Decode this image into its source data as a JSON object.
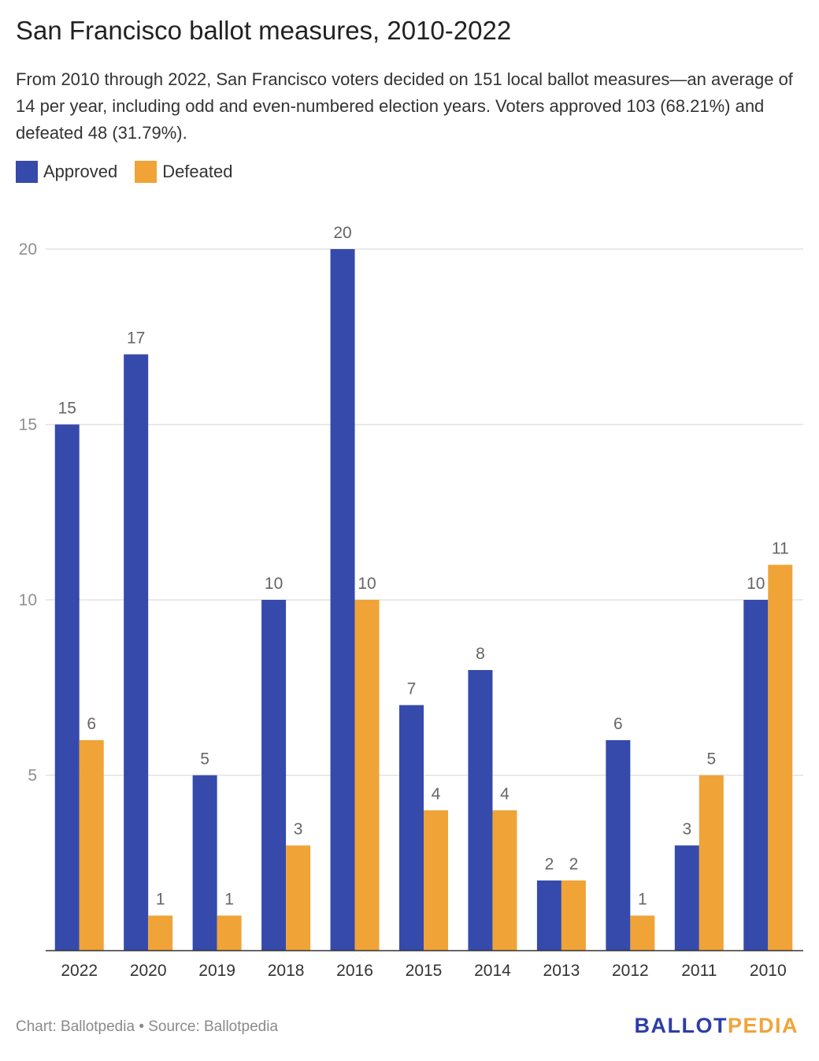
{
  "title": "San Francisco ballot measures, 2010-2022",
  "subtitle": "From 2010 through 2022, San Francisco voters decided on 151 local ballot measures—an average of 14 per year, including odd and even-numbered election years. Voters approved 103 (68.21%) and defeated 48 (31.79%).",
  "legend": [
    {
      "label": "Approved",
      "color": "#354aab"
    },
    {
      "label": "Defeated",
      "color": "#f0a337"
    }
  ],
  "footer": {
    "source": "Chart: Ballotpedia • Source: Ballotpedia",
    "brand_part1": "BALLOT",
    "brand_part2": "PEDIA"
  },
  "chart_data": {
    "type": "bar",
    "categories": [
      "2022",
      "2020",
      "2019",
      "2018",
      "2016",
      "2015",
      "2014",
      "2013",
      "2012",
      "2011",
      "2010"
    ],
    "series": [
      {
        "name": "Approved",
        "color": "#354aab",
        "values": [
          15,
          17,
          5,
          10,
          20,
          7,
          8,
          2,
          6,
          3,
          10
        ]
      },
      {
        "name": "Defeated",
        "color": "#f0a337",
        "values": [
          6,
          1,
          1,
          3,
          10,
          4,
          4,
          2,
          1,
          5,
          11
        ]
      }
    ],
    "ylim": [
      0,
      20
    ],
    "yticks": [
      5,
      10,
      15,
      20
    ],
    "grid": true,
    "legend_position": "top-left",
    "data_labels": true
  }
}
